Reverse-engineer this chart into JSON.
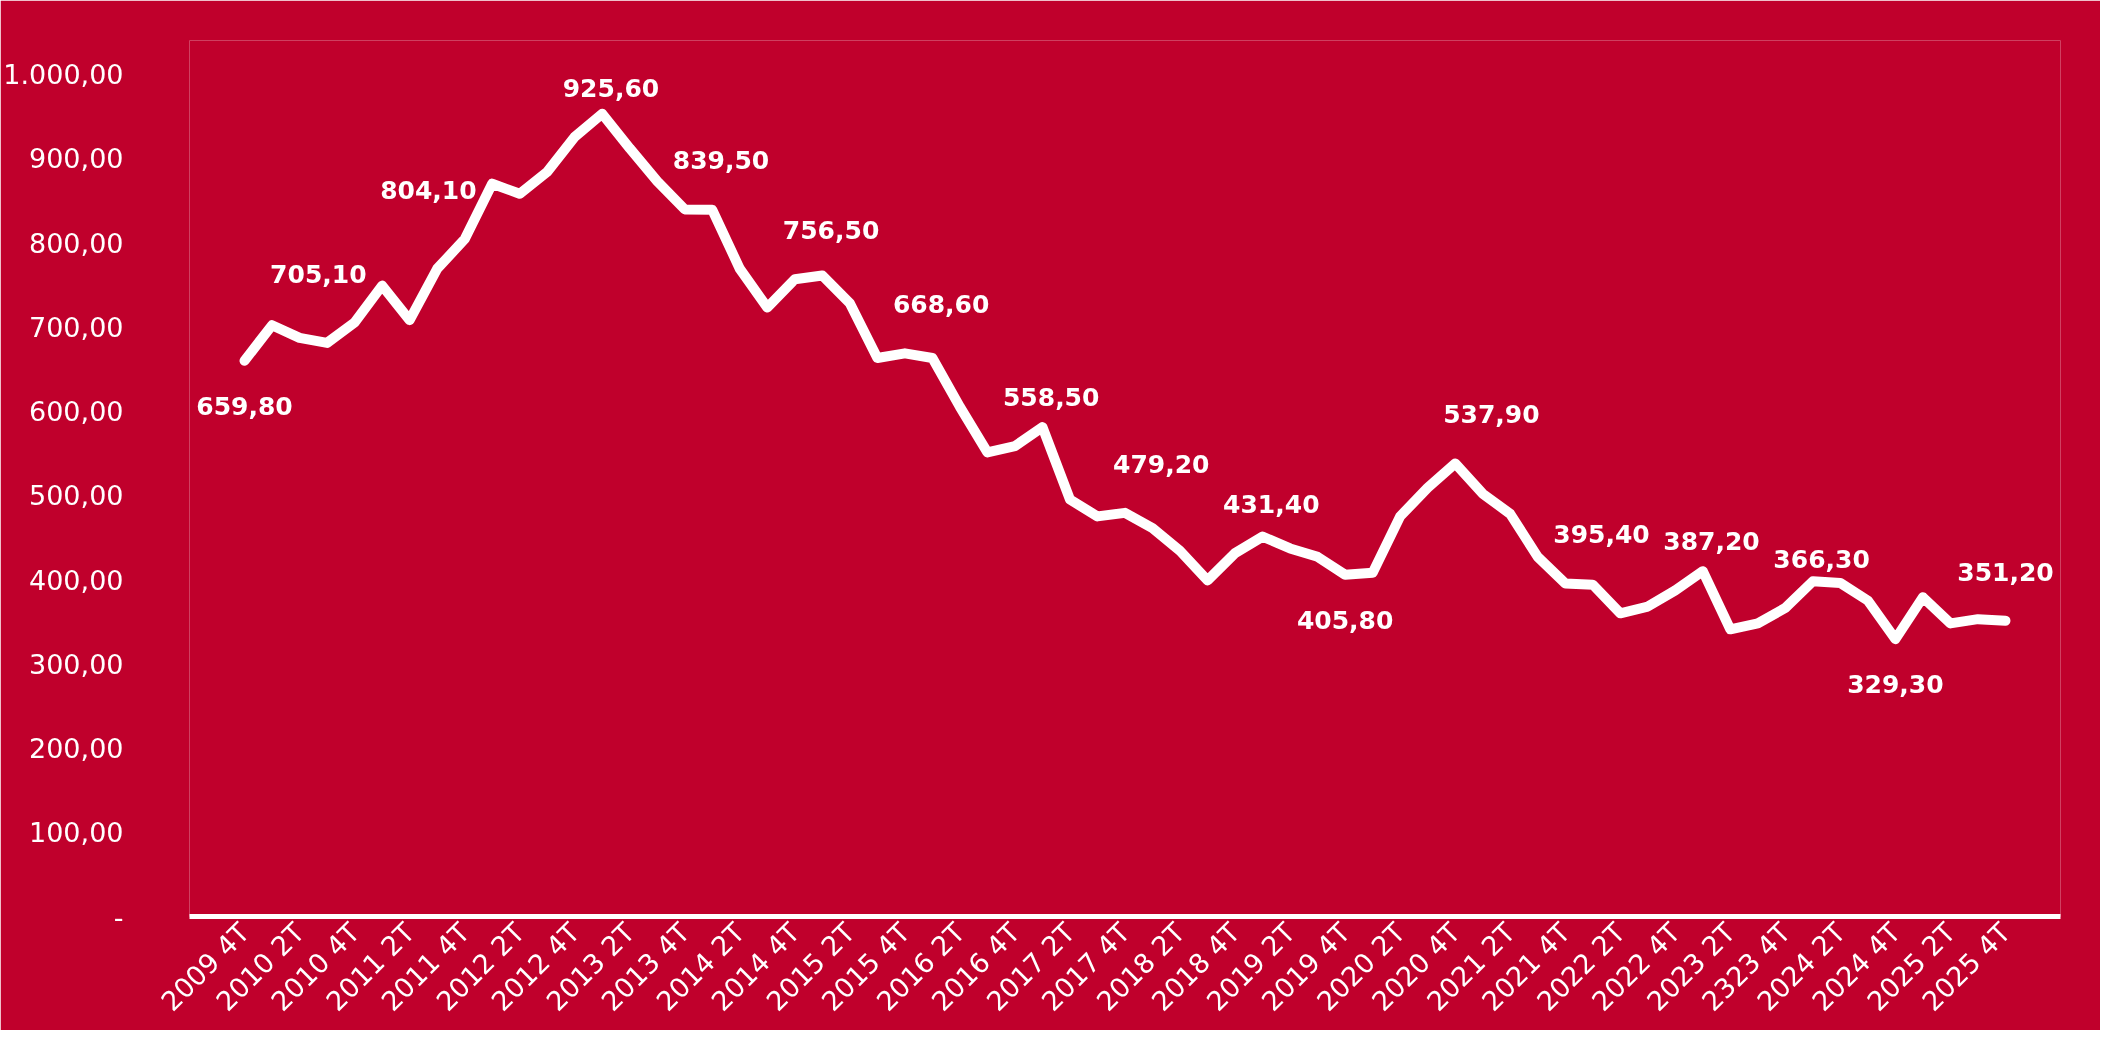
{
  "chart_data": {
    "type": "line",
    "categories": [
      "2009 4T",
      null,
      "2010 2T",
      null,
      "2010 4T",
      null,
      "2011 2T",
      null,
      "2011 4T",
      null,
      "2012 2T",
      null,
      "2012 4T",
      null,
      "2013 2T",
      null,
      "2013 4T",
      null,
      "2014 2T",
      null,
      "2014 4T",
      null,
      "2015 2T",
      null,
      "2015 4T",
      null,
      "2016 2T",
      null,
      "2016 4T",
      null,
      "2017 2T",
      null,
      "2017 4T",
      null,
      "2018 2T",
      null,
      "2018 4T",
      null,
      "2019 2T",
      null,
      "2019 4T",
      null,
      "2020 2T",
      null,
      "2020 4T",
      null,
      "2021 2T",
      null,
      "2021 4T",
      null,
      "2022 2T",
      null,
      "2022 4T",
      null,
      "2023 2T",
      null,
      "2323 4T",
      null,
      "2024 2T",
      null,
      "2024 4T",
      null,
      "2025 2T",
      null,
      "2025 4T"
    ],
    "series": [
      {
        "color": "#ffffff",
        "values": [
          659.8,
          702,
          687,
          681,
          705.1,
          749,
          708,
          769,
          804.1,
          870,
          858,
          884,
          925.6,
          953,
          912,
          873,
          839.5,
          839,
          769,
          723,
          756.5,
          761,
          728,
          663,
          668.6,
          663,
          605,
          551,
          558.5,
          581,
          495,
          475,
          479.2,
          461,
          434,
          399,
          431.4,
          451,
          437,
          427,
          405.8,
          408,
          475,
          509,
          537.9,
          502,
          478,
          427,
          395.4,
          394,
          360,
          368,
          387.2,
          410,
          341,
          348,
          366.3,
          398,
          396,
          375,
          329.3,
          379,
          348,
          353,
          351.2
        ],
        "value_labels": [
          "659,80",
          null,
          null,
          null,
          "705,10",
          null,
          null,
          null,
          "804,10",
          null,
          null,
          null,
          "925,60",
          null,
          null,
          null,
          "839,50",
          null,
          null,
          null,
          "756,50",
          null,
          null,
          null,
          "668,60",
          null,
          null,
          null,
          "558,50",
          null,
          null,
          null,
          "479,20",
          null,
          null,
          null,
          "431,40",
          null,
          null,
          null,
          "405,80",
          null,
          null,
          null,
          "537,90",
          null,
          null,
          null,
          "395,40",
          null,
          null,
          null,
          "387,20",
          null,
          null,
          null,
          "366,30",
          null,
          null,
          null,
          "329,30",
          null,
          null,
          null,
          "351,20"
        ]
      }
    ],
    "ylim": [
      0,
      1040
    ],
    "yticks": [
      {
        "value": 0,
        "label": "-"
      },
      {
        "value": 100,
        "label": "100,00"
      },
      {
        "value": 200,
        "label": "200,00"
      },
      {
        "value": 300,
        "label": "300,00"
      },
      {
        "value": 400,
        "label": "400,00"
      },
      {
        "value": 500,
        "label": "500,00"
      },
      {
        "value": 600,
        "label": "600,00"
      },
      {
        "value": 700,
        "label": "700,00"
      },
      {
        "value": 800,
        "label": "800,00"
      },
      {
        "value": 900,
        "label": "900,00"
      },
      {
        "value": 1000,
        "label": "1.000,00"
      }
    ]
  }
}
